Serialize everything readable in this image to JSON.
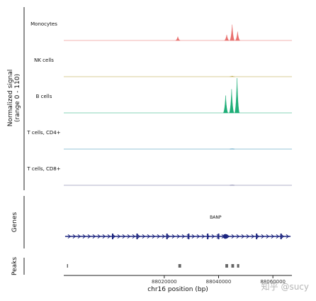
{
  "chart_data": {
    "type": "area",
    "xlabel": "chr16 position (bp)",
    "xlim": [
      87983000,
      88067000
    ],
    "x_ticks": [
      88020000,
      88040000,
      88060000
    ],
    "x_tick_labels": [
      "88020000",
      "88040000",
      "88060000"
    ],
    "signal_axis_label": "Normalized signal\n(range 0 - 110)",
    "ylim": [
      0,
      110
    ],
    "tracks": [
      {
        "name": "Monocytes",
        "color": "#e8706e",
        "peaks": [
          {
            "x": 88025000,
            "y": 12
          },
          {
            "x": 88043000,
            "y": 18
          },
          {
            "x": 88045000,
            "y": 50
          },
          {
            "x": 88047000,
            "y": 28
          }
        ]
      },
      {
        "name": "NK cells",
        "color": "#b8a23a",
        "peaks": [
          {
            "x": 88045000,
            "y": 2
          }
        ]
      },
      {
        "name": "B cells",
        "color": "#1fae78",
        "peaks": [
          {
            "x": 88042600,
            "y": 55
          },
          {
            "x": 88044800,
            "y": 75
          },
          {
            "x": 88046800,
            "y": 110
          }
        ]
      },
      {
        "name": "T cells, CD4+",
        "color": "#3a8fb8",
        "peaks": [
          {
            "x": 88045000,
            "y": 1
          }
        ]
      },
      {
        "name": "T cells, CD8+",
        "color": "#6a6a9a",
        "peaks": [
          {
            "x": 88045000,
            "y": 1
          }
        ]
      }
    ],
    "genes_label": "Genes",
    "gene": {
      "name": "BANP",
      "start": 87983500,
      "end": 88066500,
      "strand": "+",
      "exon_x": [
        88001000,
        88010000,
        88021000,
        88029000,
        88036000,
        88040000,
        88054000,
        88063000
      ]
    },
    "peaks_label": "Peaks",
    "peak_regions": [
      [
        87984200,
        87984500
      ],
      [
        88025200,
        88026200
      ],
      [
        88042500,
        88043500
      ],
      [
        88044700,
        88045700
      ],
      [
        88046800,
        88047600
      ]
    ]
  },
  "watermark": "知乎 @sucy"
}
